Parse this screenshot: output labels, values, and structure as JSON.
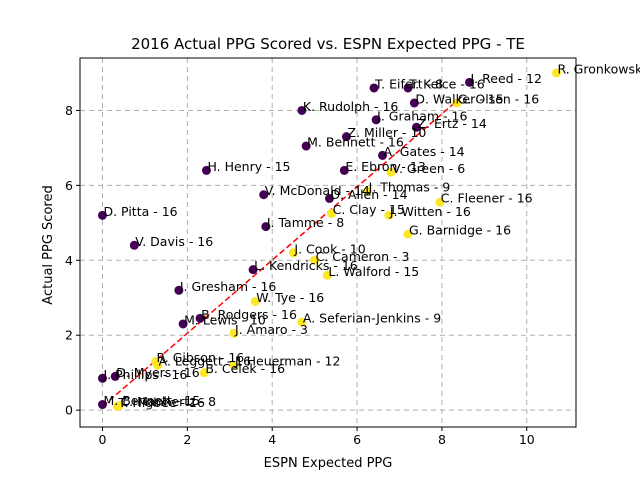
{
  "chart_data": {
    "type": "scatter",
    "title": "2016 Actual PPG Scored vs. ESPN Expected PPG - TE",
    "xlabel": "ESPN Expected PPG",
    "ylabel": "Actual PPG Scored",
    "xlim": [
      -0.53,
      11.16
    ],
    "ylim": [
      -0.45,
      9.4
    ],
    "xticks": [
      0,
      2,
      4,
      6,
      8,
      10
    ],
    "yticks": [
      0,
      2,
      4,
      6,
      8
    ],
    "grid": true,
    "colors": {
      "low": "#440154",
      "high": "#fde725",
      "trend": "#ff0000",
      "grid": "#b0b0b0"
    },
    "trend_line": {
      "x": [
        0,
        8.4
      ],
      "y": [
        0.1,
        8.3
      ]
    },
    "points": [
      {
        "label": "R. Gronkowski - 8",
        "x": 10.7,
        "y": 9.0,
        "group": "high"
      },
      {
        "label": "J. Reed - 12",
        "x": 8.65,
        "y": 8.75,
        "group": "low"
      },
      {
        "label": "T. Eifert - 8",
        "x": 6.4,
        "y": 8.6,
        "group": "low"
      },
      {
        "label": "T. Kelce - 16",
        "x": 7.2,
        "y": 8.6,
        "group": "low"
      },
      {
        "label": "D. Walker - 15",
        "x": 7.35,
        "y": 8.2,
        "group": "low"
      },
      {
        "label": "G. Olsen - 16",
        "x": 8.35,
        "y": 8.2,
        "group": "high"
      },
      {
        "label": "K. Rudolph - 16",
        "x": 4.7,
        "y": 8.0,
        "group": "low"
      },
      {
        "label": "J. Graham - 16",
        "x": 6.45,
        "y": 7.75,
        "group": "low"
      },
      {
        "label": "Z. Ertz - 14",
        "x": 7.4,
        "y": 7.55,
        "group": "low"
      },
      {
        "label": "Z. Miller - 10",
        "x": 5.75,
        "y": 7.3,
        "group": "low"
      },
      {
        "label": "M. Bennett - 16",
        "x": 4.8,
        "y": 7.05,
        "group": "low"
      },
      {
        "label": "A. Gates - 14",
        "x": 6.6,
        "y": 6.8,
        "group": "low"
      },
      {
        "label": "H. Henry - 15",
        "x": 2.45,
        "y": 6.4,
        "group": "low"
      },
      {
        "label": "E. Ebron - 13",
        "x": 5.7,
        "y": 6.4,
        "group": "low"
      },
      {
        "label": "V. Green - 6",
        "x": 6.8,
        "y": 6.35,
        "group": "high"
      },
      {
        "label": "V. McDonald - 14",
        "x": 3.8,
        "y": 5.75,
        "group": "low"
      },
      {
        "label": "D. Allen - 14",
        "x": 5.35,
        "y": 5.65,
        "group": "low"
      },
      {
        "label": "J. Thomas - 9",
        "x": 6.25,
        "y": 5.85,
        "group": "high"
      },
      {
        "label": "C. Fleener - 16",
        "x": 7.95,
        "y": 5.55,
        "group": "high"
      },
      {
        "label": "C. Clay - 15",
        "x": 5.4,
        "y": 5.25,
        "group": "high"
      },
      {
        "label": "J. Witten - 16",
        "x": 6.75,
        "y": 5.2,
        "group": "high"
      },
      {
        "label": "D. Pitta - 16",
        "x": 0.0,
        "y": 5.2,
        "group": "low"
      },
      {
        "label": "J. Tamme - 8",
        "x": 3.85,
        "y": 4.9,
        "group": "low"
      },
      {
        "label": "G. Barnidge - 16",
        "x": 7.2,
        "y": 4.7,
        "group": "high"
      },
      {
        "label": "V. Davis - 16",
        "x": 0.75,
        "y": 4.4,
        "group": "low"
      },
      {
        "label": "J. Cook - 10",
        "x": 4.5,
        "y": 4.2,
        "group": "high"
      },
      {
        "label": "C. Cameron - 3",
        "x": 5.0,
        "y": 4.0,
        "group": "high"
      },
      {
        "label": "L. Kendricks - 16",
        "x": 3.55,
        "y": 3.75,
        "group": "low"
      },
      {
        "label": "L. Walford - 15",
        "x": 5.3,
        "y": 3.6,
        "group": "high"
      },
      {
        "label": "J. Gresham - 16",
        "x": 1.8,
        "y": 3.2,
        "group": "low"
      },
      {
        "label": "W. Tye - 16",
        "x": 3.6,
        "y": 2.9,
        "group": "high"
      },
      {
        "label": "B. Rodgers - 16",
        "x": 2.3,
        "y": 2.45,
        "group": "low"
      },
      {
        "label": "M. Lewis - 10",
        "x": 1.9,
        "y": 2.3,
        "group": "low"
      },
      {
        "label": "A. Seferian-Jenkins - 9",
        "x": 4.7,
        "y": 2.35,
        "group": "high"
      },
      {
        "label": "J. Amaro - 3",
        "x": 3.1,
        "y": 2.05,
        "group": "high"
      },
      {
        "label": "R. Gibson - 16",
        "x": 1.25,
        "y": 1.3,
        "group": "high"
      },
      {
        "label": "A. Leggett - 16",
        "x": 1.3,
        "y": 1.2,
        "group": "high"
      },
      {
        "label": "J. Heuerman - 12",
        "x": 3.1,
        "y": 1.2,
        "group": "high"
      },
      {
        "label": "B. Celek - 16",
        "x": 2.4,
        "y": 1.0,
        "group": "high"
      },
      {
        "label": "D. Myers - 16",
        "x": 0.3,
        "y": 0.9,
        "group": "low"
      },
      {
        "label": "J. Phillips - 16",
        "x": 0.0,
        "y": 0.85,
        "group": "low"
      },
      {
        "label": "M. Bennett - 15",
        "x": 0.0,
        "y": 0.15,
        "group": "low"
      },
      {
        "label": "T. Higbee - 16",
        "x": 0.35,
        "y": 0.1,
        "group": "high"
      },
      {
        "label": "C. Manhertz - 8",
        "x": 0.4,
        "y": 0.12,
        "group": "high"
      }
    ]
  }
}
